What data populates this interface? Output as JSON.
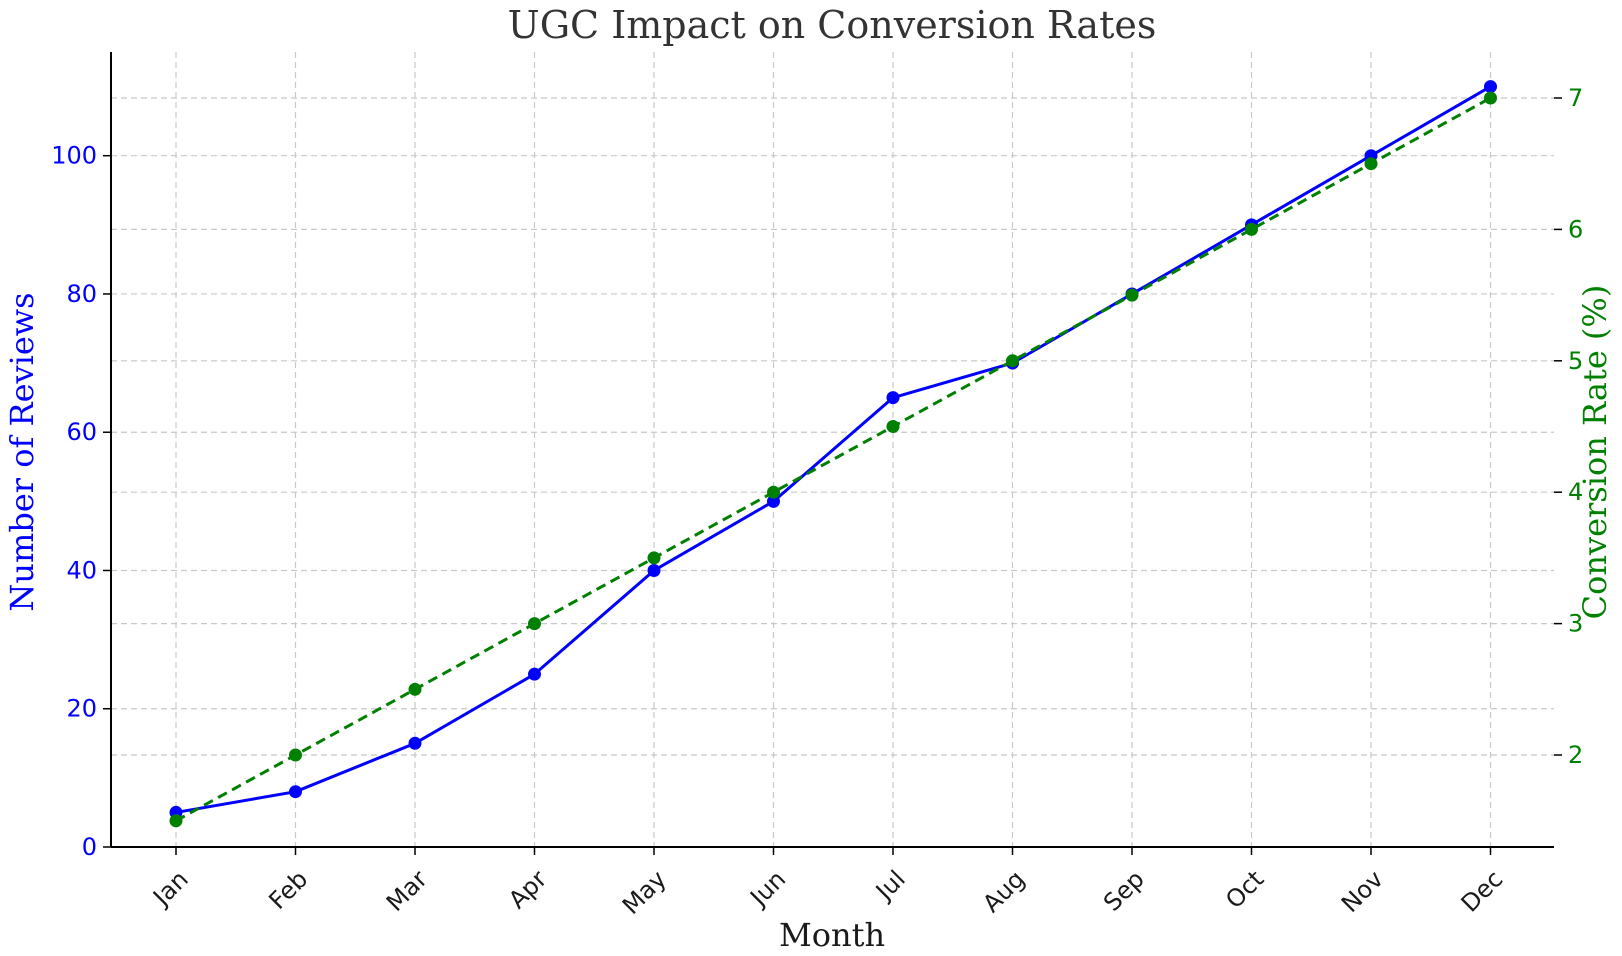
{
  "chart_data": {
    "type": "line",
    "title": "UGC Impact on Conversion Rates",
    "xlabel": "Month",
    "ylabel": "Number of Reviews",
    "y2label": "Conversion Rate (%)",
    "categories": [
      "Jan",
      "Feb",
      "Mar",
      "Apr",
      "May",
      "Jun",
      "Jul",
      "Aug",
      "Sep",
      "Oct",
      "Nov",
      "Dec"
    ],
    "ylim": [
      0,
      115
    ],
    "y2lim": [
      1.3,
      7.35
    ],
    "yticks": [
      0,
      20,
      40,
      60,
      80,
      100
    ],
    "y2ticks": [
      2,
      3,
      4,
      5,
      6,
      7
    ],
    "grid": true,
    "series": [
      {
        "axis": "left",
        "color": "#0000ff",
        "linestyle": "solid",
        "marker": "circle",
        "values": [
          5,
          8,
          15,
          25,
          40,
          50,
          65,
          70,
          80,
          90,
          100,
          110
        ]
      },
      {
        "axis": "right",
        "color": "#008000",
        "linestyle": "dashed",
        "marker": "circle",
        "values": [
          1.5,
          2.0,
          2.5,
          3.0,
          3.5,
          4.0,
          4.5,
          5.0,
          5.5,
          6.0,
          6.5,
          7.0
        ]
      }
    ]
  }
}
